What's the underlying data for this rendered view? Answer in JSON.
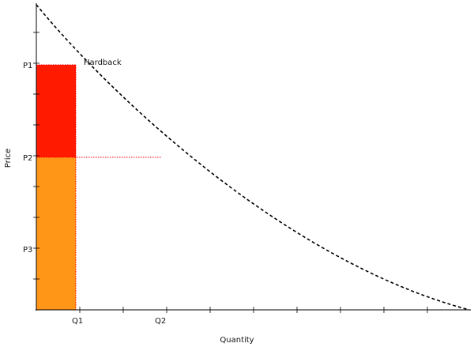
{
  "diagram": {
    "labels": {
      "y_axis_title": "Price",
      "x_axis_title": "Quantity",
      "curve_label": "Hardback",
      "p1": "P1",
      "p2": "P2",
      "p3": "P3",
      "q1": "Q1",
      "q2": "Q2"
    },
    "colors": {
      "upper_rect": "#ff1a00",
      "lower_rect": "#ff9618",
      "curve": "#000000",
      "guide_line": "#ff0000",
      "axis": "#000000"
    }
  }
}
